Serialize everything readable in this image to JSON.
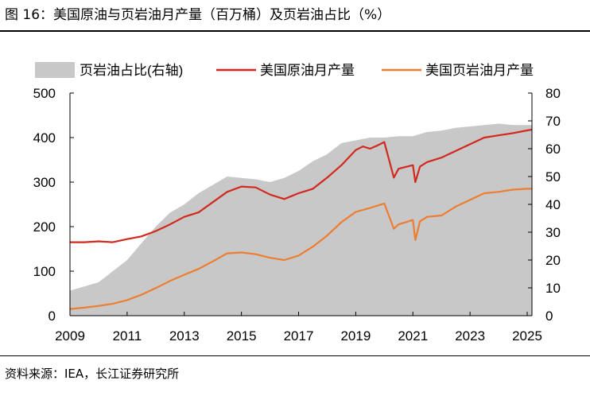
{
  "figure_title": "图 16：美国原油与页岩油月产量（百万桶）及页岩油占比（%）",
  "source_note": "资料来源：IEA，长江证券研究所",
  "colors": {
    "share_area": "#c8c8c8",
    "crude_line": "#d2281e",
    "shale_line": "#ed7d31"
  },
  "chart_data": {
    "type": "line",
    "x_ticks": [
      "2009",
      "2011",
      "2013",
      "2015",
      "2017",
      "2019",
      "2021",
      "2023",
      "2025"
    ],
    "xlim": [
      "2009-01",
      "2025-03"
    ],
    "left_axis": {
      "ylim": [
        0,
        500
      ],
      "ticks": [
        "0",
        "100",
        "200",
        "300",
        "400",
        "500"
      ]
    },
    "right_axis": {
      "ylim": [
        0,
        80
      ],
      "ticks": [
        "0",
        "10",
        "20",
        "30",
        "40",
        "50",
        "60",
        "70",
        "80"
      ]
    },
    "grid": false,
    "legend_position": "top",
    "series": [
      {
        "name": "页岩油占比(右轴)",
        "type": "area",
        "axis": "right",
        "points": [
          [
            "2009-01",
            9
          ],
          [
            "2009-07",
            10.5
          ],
          [
            "2010-01",
            12
          ],
          [
            "2010-07",
            16
          ],
          [
            "2011-01",
            20
          ],
          [
            "2011-07",
            26
          ],
          [
            "2012-01",
            32
          ],
          [
            "2012-07",
            37
          ],
          [
            "2013-01",
            40
          ],
          [
            "2013-07",
            44
          ],
          [
            "2014-01",
            47
          ],
          [
            "2014-07",
            50
          ],
          [
            "2015-01",
            49.5
          ],
          [
            "2015-07",
            49
          ],
          [
            "2016-01",
            48
          ],
          [
            "2016-07",
            49.5
          ],
          [
            "2017-01",
            52
          ],
          [
            "2017-07",
            55.5
          ],
          [
            "2018-01",
            58
          ],
          [
            "2018-07",
            62
          ],
          [
            "2019-01",
            63
          ],
          [
            "2019-07",
            64
          ],
          [
            "2020-01",
            64
          ],
          [
            "2020-07",
            64.5
          ],
          [
            "2021-01",
            64.5
          ],
          [
            "2021-07",
            66
          ],
          [
            "2022-01",
            66.5
          ],
          [
            "2022-07",
            67.5
          ],
          [
            "2023-01",
            68
          ],
          [
            "2023-07",
            68.5
          ],
          [
            "2024-01",
            69
          ],
          [
            "2024-07",
            68.5
          ],
          [
            "2025-01",
            68.5
          ],
          [
            "2025-03",
            68.5
          ]
        ]
      },
      {
        "name": "美国原油月产量",
        "type": "line",
        "axis": "left",
        "points": [
          [
            "2009-01",
            165
          ],
          [
            "2009-07",
            165
          ],
          [
            "2010-01",
            167
          ],
          [
            "2010-07",
            165
          ],
          [
            "2011-01",
            172
          ],
          [
            "2011-07",
            178
          ],
          [
            "2012-01",
            190
          ],
          [
            "2012-07",
            205
          ],
          [
            "2013-01",
            222
          ],
          [
            "2013-07",
            232
          ],
          [
            "2014-01",
            255
          ],
          [
            "2014-07",
            278
          ],
          [
            "2015-01",
            290
          ],
          [
            "2015-07",
            288
          ],
          [
            "2016-01",
            272
          ],
          [
            "2016-07",
            262
          ],
          [
            "2017-01",
            275
          ],
          [
            "2017-07",
            285
          ],
          [
            "2018-01",
            310
          ],
          [
            "2018-07",
            338
          ],
          [
            "2019-01",
            372
          ],
          [
            "2019-04",
            380
          ],
          [
            "2019-07",
            375
          ],
          [
            "2019-10",
            382
          ],
          [
            "2020-01",
            390
          ],
          [
            "2020-05",
            310
          ],
          [
            "2020-07",
            330
          ],
          [
            "2021-01",
            338
          ],
          [
            "2021-02",
            300
          ],
          [
            "2021-04",
            335
          ],
          [
            "2021-07",
            345
          ],
          [
            "2022-01",
            355
          ],
          [
            "2022-07",
            370
          ],
          [
            "2023-01",
            385
          ],
          [
            "2023-07",
            400
          ],
          [
            "2024-01",
            405
          ],
          [
            "2024-07",
            410
          ],
          [
            "2025-01",
            416
          ],
          [
            "2025-03",
            418
          ]
        ]
      },
      {
        "name": "美国页岩油月产量",
        "type": "line",
        "axis": "left",
        "points": [
          [
            "2009-01",
            15
          ],
          [
            "2009-07",
            18
          ],
          [
            "2010-01",
            22
          ],
          [
            "2010-07",
            27
          ],
          [
            "2011-01",
            35
          ],
          [
            "2011-07",
            47
          ],
          [
            "2012-01",
            62
          ],
          [
            "2012-07",
            78
          ],
          [
            "2013-01",
            92
          ],
          [
            "2013-07",
            105
          ],
          [
            "2014-01",
            122
          ],
          [
            "2014-07",
            140
          ],
          [
            "2015-01",
            142
          ],
          [
            "2015-07",
            138
          ],
          [
            "2016-01",
            130
          ],
          [
            "2016-07",
            125
          ],
          [
            "2017-01",
            135
          ],
          [
            "2017-07",
            155
          ],
          [
            "2018-01",
            180
          ],
          [
            "2018-07",
            210
          ],
          [
            "2019-01",
            233
          ],
          [
            "2019-07",
            242
          ],
          [
            "2020-01",
            252
          ],
          [
            "2020-05",
            195
          ],
          [
            "2020-07",
            205
          ],
          [
            "2021-01",
            215
          ],
          [
            "2021-02",
            170
          ],
          [
            "2021-04",
            212
          ],
          [
            "2021-07",
            222
          ],
          [
            "2022-01",
            225
          ],
          [
            "2022-07",
            245
          ],
          [
            "2023-01",
            260
          ],
          [
            "2023-07",
            275
          ],
          [
            "2024-01",
            278
          ],
          [
            "2024-07",
            283
          ],
          [
            "2025-01",
            285
          ],
          [
            "2025-03",
            285
          ]
        ]
      }
    ]
  }
}
